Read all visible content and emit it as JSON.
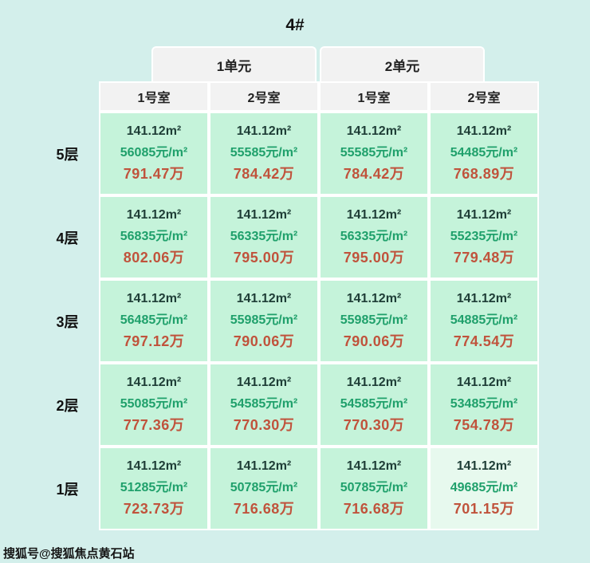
{
  "page": {
    "watermark": "搜狐号@搜狐焦点黄石站"
  },
  "colors": {
    "page_bg": "#d3efeb",
    "cell_bg": "#c5f3da",
    "cell_highlight_bg": "#e7f9ee",
    "header_bg": "#f2f2f2",
    "divider": "#ffffff",
    "area_text": "#1e3d36",
    "price_text": "#1fa06b",
    "total_text": "#c0533c",
    "title_text": "#111111"
  },
  "chart_data": {
    "type": "table",
    "title": "4#",
    "unit_headers": [
      "1单元",
      "2单元"
    ],
    "room_headers": [
      "1号室",
      "2号室",
      "1号室",
      "2号室"
    ],
    "highlight_cell": {
      "row": 4,
      "col": 3
    },
    "floors": [
      {
        "label": "5层",
        "cells": [
          {
            "area": "141.12m²",
            "price": "56085元/m²",
            "total": "791.47万"
          },
          {
            "area": "141.12m²",
            "price": "55585元/m²",
            "total": "784.42万"
          },
          {
            "area": "141.12m²",
            "price": "55585元/m²",
            "total": "784.42万"
          },
          {
            "area": "141.12m²",
            "price": "54485元/m²",
            "total": "768.89万"
          }
        ]
      },
      {
        "label": "4层",
        "cells": [
          {
            "area": "141.12m²",
            "price": "56835元/m²",
            "total": "802.06万"
          },
          {
            "area": "141.12m²",
            "price": "56335元/m²",
            "total": "795.00万"
          },
          {
            "area": "141.12m²",
            "price": "56335元/m²",
            "total": "795.00万"
          },
          {
            "area": "141.12m²",
            "price": "55235元/m²",
            "total": "779.48万"
          }
        ]
      },
      {
        "label": "3层",
        "cells": [
          {
            "area": "141.12m²",
            "price": "56485元/m²",
            "total": "797.12万"
          },
          {
            "area": "141.12m²",
            "price": "55985元/m²",
            "total": "790.06万"
          },
          {
            "area": "141.12m²",
            "price": "55985元/m²",
            "total": "790.06万"
          },
          {
            "area": "141.12m²",
            "price": "54885元/m²",
            "total": "774.54万"
          }
        ]
      },
      {
        "label": "2层",
        "cells": [
          {
            "area": "141.12m²",
            "price": "55085元/m²",
            "total": "777.36万"
          },
          {
            "area": "141.12m²",
            "price": "54585元/m²",
            "total": "770.30万"
          },
          {
            "area": "141.12m²",
            "price": "54585元/m²",
            "total": "770.30万"
          },
          {
            "area": "141.12m²",
            "price": "53485元/m²",
            "total": "754.78万"
          }
        ]
      },
      {
        "label": "1层",
        "cells": [
          {
            "area": "141.12m²",
            "price": "51285元/m²",
            "total": "723.73万"
          },
          {
            "area": "141.12m²",
            "price": "50785元/m²",
            "total": "716.68万"
          },
          {
            "area": "141.12m²",
            "price": "50785元/m²",
            "total": "716.68万"
          },
          {
            "area": "141.12m²",
            "price": "49685元/m²",
            "total": "701.15万"
          }
        ]
      }
    ]
  }
}
